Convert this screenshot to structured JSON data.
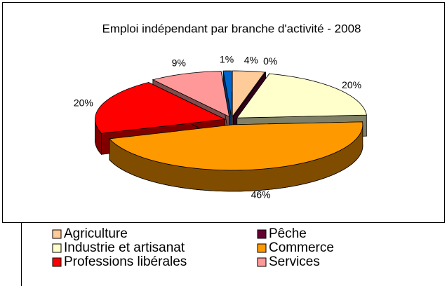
{
  "chart_data": {
    "type": "pie3d",
    "title": "Emploi indépendant par branche d'activité - 2008",
    "categories": [
      "Agriculture",
      "Pêche",
      "Industrie et artisanat",
      "Commerce",
      "Professions libérales",
      "Services",
      null
    ],
    "values": [
      4,
      0,
      20,
      46,
      20,
      9,
      1
    ],
    "value_labels": [
      "4%",
      "0%",
      "20%",
      "46%",
      "20%",
      "9%",
      "1%"
    ],
    "colors": [
      "#FFCC99",
      "#660033",
      "#FFFFCC",
      "#FF9900",
      "#FF0000",
      "#FF9999",
      "#0066CC"
    ],
    "legend": "bottom"
  }
}
